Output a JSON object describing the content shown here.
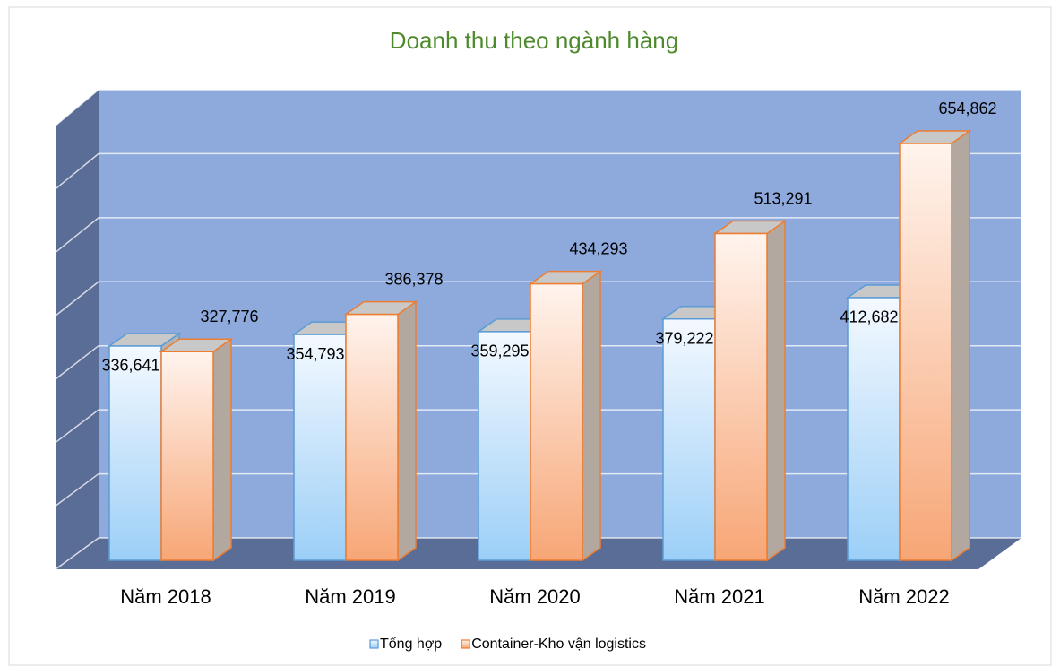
{
  "chart_data": {
    "type": "bar3d",
    "title": "Doanh thu theo ngành hàng",
    "categories": [
      "Năm 2018",
      "Năm 2019",
      "Năm 2020",
      "Năm 2021",
      "Năm 2022"
    ],
    "series": [
      {
        "name": "Tổng hợp",
        "color": "#5b9bd5",
        "values": [
          336641,
          354793,
          359295,
          379222,
          412682
        ],
        "value_labels": [
          "336,641",
          "354,793",
          "359,295",
          "379,222",
          "412,682"
        ]
      },
      {
        "name": "Container-Kho vận logistics",
        "color": "#ed7d31",
        "values": [
          327776,
          386378,
          434293,
          513291,
          654862
        ],
        "value_labels": [
          "327,776",
          "386,378",
          "434,293",
          "513,291",
          "654,862"
        ]
      }
    ],
    "ylim": [
      0,
      700000
    ],
    "yticks": [
      0,
      100000,
      200000,
      300000,
      400000,
      500000,
      600000,
      700000
    ],
    "grid": true,
    "legend": "bottom"
  }
}
